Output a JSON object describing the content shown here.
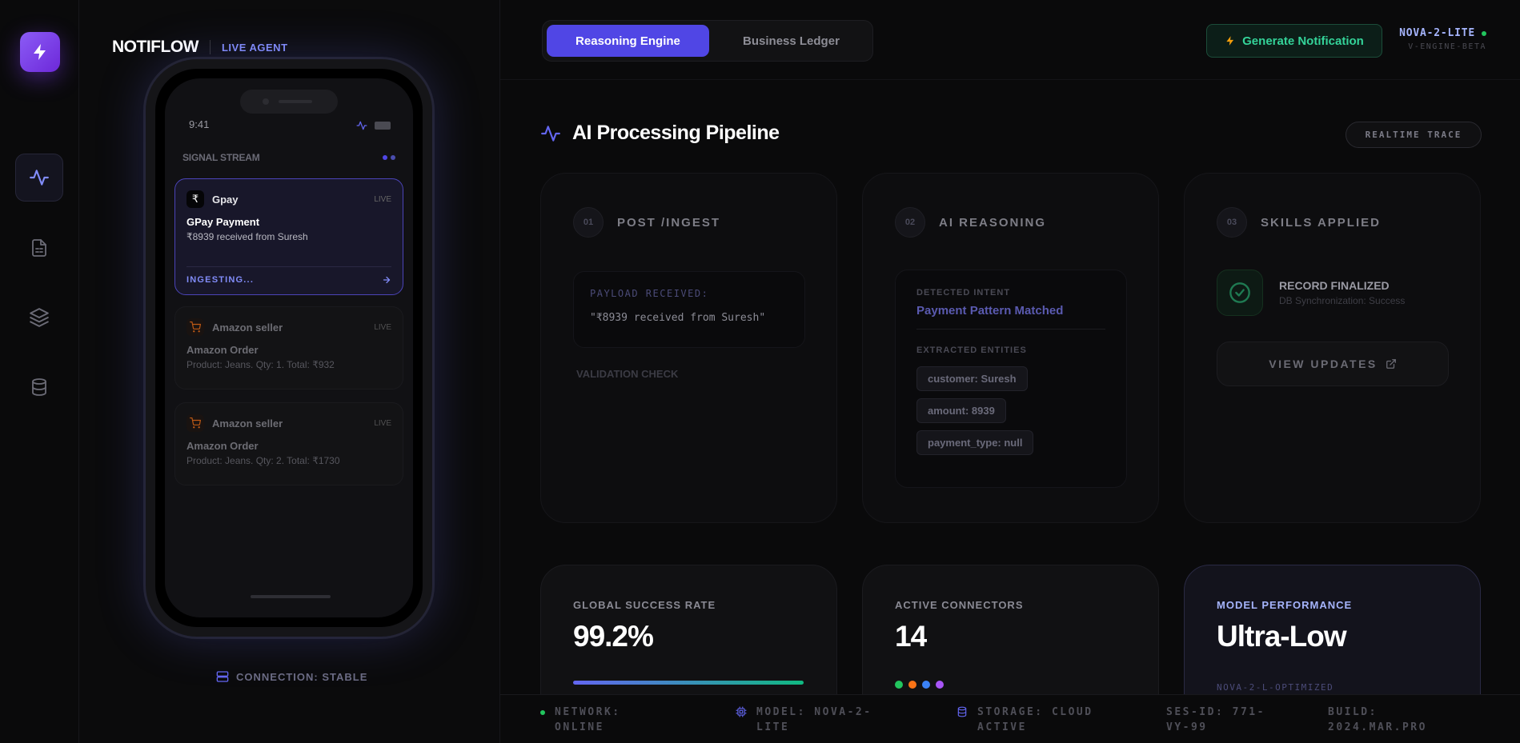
{
  "brand": {
    "name": "NOTIFLOW",
    "badge": "LIVE AGENT"
  },
  "nav": {
    "items": [
      "activity",
      "document",
      "layers",
      "database"
    ],
    "active": "activity"
  },
  "phone": {
    "time": "9:41",
    "stream_title": "SIGNAL STREAM",
    "notifications": [
      {
        "app": "Gpay",
        "icon": "₹",
        "live": "LIVE",
        "title": "GPay Payment",
        "body": "₹8939 received from Suresh",
        "status": "INGESTING..."
      },
      {
        "app": "Amazon seller",
        "live": "LIVE",
        "title": "Amazon Order",
        "body": "Product: Jeans. Qty: 1. Total: ₹932"
      },
      {
        "app": "Amazon seller",
        "live": "LIVE",
        "title": "Amazon Order",
        "body": "Product: Jeans. Qty: 2. Total: ₹1730"
      }
    ],
    "connection": "CONNECTION: STABLE"
  },
  "header": {
    "tabs": [
      "Reasoning Engine",
      "Business Ledger"
    ],
    "active_tab": "Reasoning Engine",
    "generate_label": "Generate Notification",
    "model_name": "NOVA-2-LITE",
    "model_sub": "V-ENGINE-BETA"
  },
  "pipeline": {
    "title": "AI Processing Pipeline",
    "trace_label": "REALTIME TRACE",
    "stages": [
      {
        "num": "01",
        "label": "POST /INGEST",
        "payload_key": "PAYLOAD RECEIVED:",
        "payload_value": "\"₹8939 received from Suresh\"",
        "validation": "VALIDATION CHECK"
      },
      {
        "num": "02",
        "label": "AI REASONING",
        "intent_key": "DETECTED INTENT",
        "intent_value": "Payment Pattern Matched",
        "entities_key": "EXTRACTED ENTITIES",
        "entities": [
          "customer: Suresh",
          "amount: 8939",
          "payment_type: null"
        ]
      },
      {
        "num": "03",
        "label": "SKILLS APPLIED",
        "record_title": "RECORD FINALIZED",
        "record_sub": "DB Synchronization: Success",
        "view_label": "VIEW UPDATES"
      }
    ]
  },
  "metrics": [
    {
      "label": "GLOBAL SUCCESS RATE",
      "value": "99.2%",
      "progress": 1.0
    },
    {
      "label": "ACTIVE CONNECTORS",
      "value": "14",
      "dot_colors": [
        "#22c55e",
        "#f97316",
        "#3b82f6",
        "#a855f7"
      ]
    },
    {
      "label": "MODEL PERFORMANCE",
      "value": "Ultra-Low",
      "sub": "NOVA-2-L-OPTIMIZED"
    }
  ],
  "footer": {
    "network": "NETWORK: ONLINE",
    "model": "MODEL: NOVA-2-LITE",
    "storage": "STORAGE: CLOUD ACTIVE",
    "session": "SES-ID: 771-VY-99",
    "build": "BUILD: 2024.MAR.PRO"
  },
  "colors": {
    "accent": "#5046e5",
    "success": "#34d399",
    "brand": "#7c3aed"
  }
}
